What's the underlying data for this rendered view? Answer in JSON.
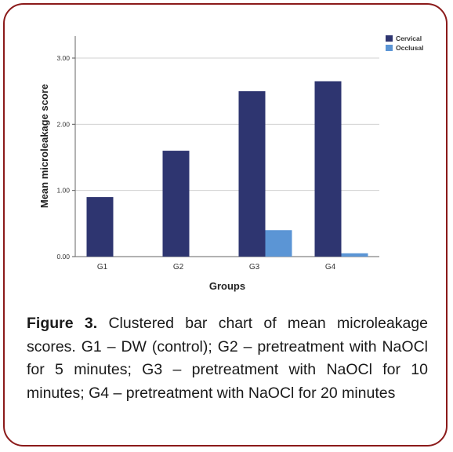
{
  "chart_data": {
    "type": "bar",
    "categories": [
      "G1",
      "G2",
      "G3",
      "G4"
    ],
    "series": [
      {
        "name": "Cervical",
        "values": [
          0.9,
          1.6,
          2.5,
          2.65
        ],
        "color": "#2e3570"
      },
      {
        "name": "Occlusal",
        "values": [
          0.0,
          0.0,
          0.4,
          0.05
        ],
        "color": "#5b95d5"
      }
    ],
    "xlabel": "Groups",
    "ylabel": "Mean microleakage score",
    "ylim": [
      0,
      3.0
    ],
    "yticks": [
      "0.00",
      "1.00",
      "2.00",
      "3.00"
    ],
    "grid": true,
    "legend_position": "top-right"
  },
  "caption": {
    "label": "Figure 3.",
    "text": " Clustered bar chart of mean microleakage scores. G1 – DW (control); G2 – pretreatment with NaOCl for 5 minutes; G3 – pretreatment with NaOCl for 10 minutes; G4 – pretreatment with NaOCl for 20 minutes"
  },
  "colors": {
    "frame_border": "#8b1a1a",
    "gridline": "#d0d0d0"
  }
}
